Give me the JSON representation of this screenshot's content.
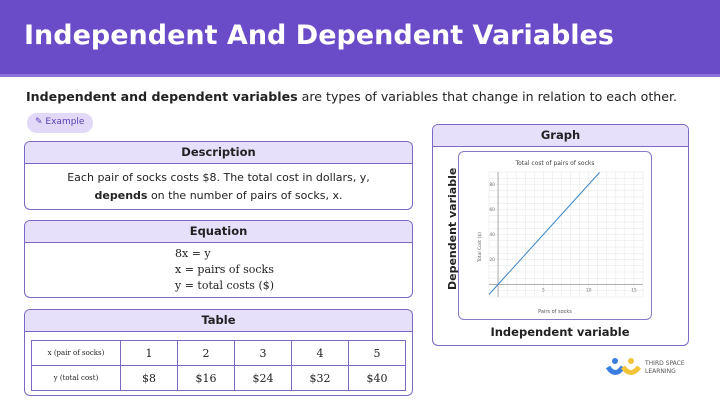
{
  "header": {
    "title": "Independent And Dependent Variables"
  },
  "intro": {
    "bold": "Independent and dependent variables",
    "rest": " are types of variables that change in relation to each other."
  },
  "example_pill": {
    "label": "Example",
    "icon": "pencil-icon"
  },
  "description": {
    "title": "Description",
    "line1": "Each pair of socks costs $8. The total cost in dollars, y,",
    "line2_bold": "depends",
    "line2_rest": " on the number of pairs of socks, x."
  },
  "equation": {
    "title": "Equation",
    "lines": [
      "8x = y",
      "x = pairs of socks",
      "y = total costs ($)"
    ]
  },
  "table": {
    "title": "Table",
    "row_x_label": "x (pair of socks)",
    "row_y_label": "y (total cost)",
    "x": [
      "1",
      "2",
      "3",
      "4",
      "5"
    ],
    "y": [
      "$8",
      "$16",
      "$24",
      "$32",
      "$40"
    ]
  },
  "graph": {
    "title": "Graph",
    "ylabel": "Dependent variable",
    "xlabel": "Independent variable"
  },
  "chart_data": {
    "type": "line",
    "title": "Total cost of pairs of socks",
    "xlabel": "Pairs of socks",
    "ylabel": "Total Cost ($)",
    "xlim": [
      -1,
      16
    ],
    "ylim": [
      -10,
      90
    ],
    "xticks": [
      "5",
      "10",
      "15"
    ],
    "yticks": [
      "20",
      "40",
      "60",
      "80"
    ],
    "grid": true,
    "color": "#3a86c8",
    "series": [
      {
        "x": [
          -1,
          11.2
        ],
        "y": [
          -8,
          89.6
        ]
      }
    ]
  },
  "logo": {
    "line1": "THIRD SPACE",
    "line2": "LEARNING"
  }
}
